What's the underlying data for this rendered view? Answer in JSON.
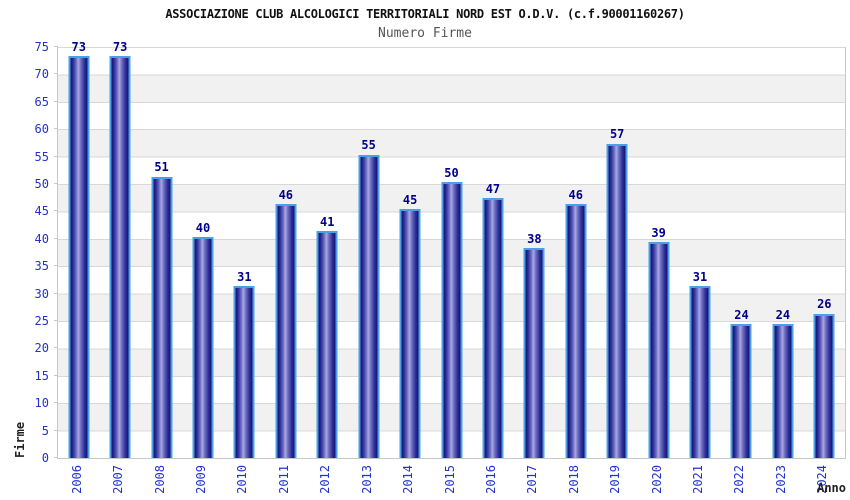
{
  "header": {
    "title": "ASSOCIAZIONE CLUB ALCOLOGICI TERRITORIALI NORD EST O.D.V. (c.f.90001160267)",
    "subtitle": "Numero Firme"
  },
  "axes": {
    "y_label": "Firme",
    "x_label": "Anno",
    "y_ticks": [
      0,
      5,
      10,
      15,
      20,
      25,
      30,
      35,
      40,
      45,
      50,
      55,
      60,
      65,
      70,
      75
    ]
  },
  "chart_data": {
    "type": "bar",
    "title": "ASSOCIAZIONE CLUB ALCOLOGICI TERRITORIALI NORD EST O.D.V. (c.f.90001160267)",
    "subtitle": "Numero Firme",
    "categories": [
      "2006",
      "2007",
      "2008",
      "2009",
      "2010",
      "2011",
      "2012",
      "2013",
      "2014",
      "2015",
      "2016",
      "2017",
      "2018",
      "2019",
      "2020",
      "2021",
      "2022",
      "2023",
      "2024"
    ],
    "values": [
      73,
      73,
      51,
      40,
      31,
      46,
      41,
      55,
      45,
      50,
      47,
      38,
      46,
      57,
      39,
      31,
      24,
      24,
      26
    ],
    "xlabel": "Anno",
    "ylabel": "Firme",
    "ylim": [
      0,
      75
    ],
    "ytick_step": 5,
    "grid": true,
    "legend_position": "none",
    "bar_value_labels": true
  },
  "colors": {
    "bar_dark": "#14146e",
    "bar_mid": "#2a2a96",
    "bar_light": "#a8a8e4",
    "bar_border": "#49a0e6",
    "value_label": "#00008b",
    "tick_label": "#2233cc",
    "band_gray": "#f1f1f1",
    "grid_line": "#d8d8d8",
    "frame": "#c8c8c8",
    "title_color": "#111111",
    "subtitle_color": "#555555",
    "axis_title": "#222222"
  }
}
